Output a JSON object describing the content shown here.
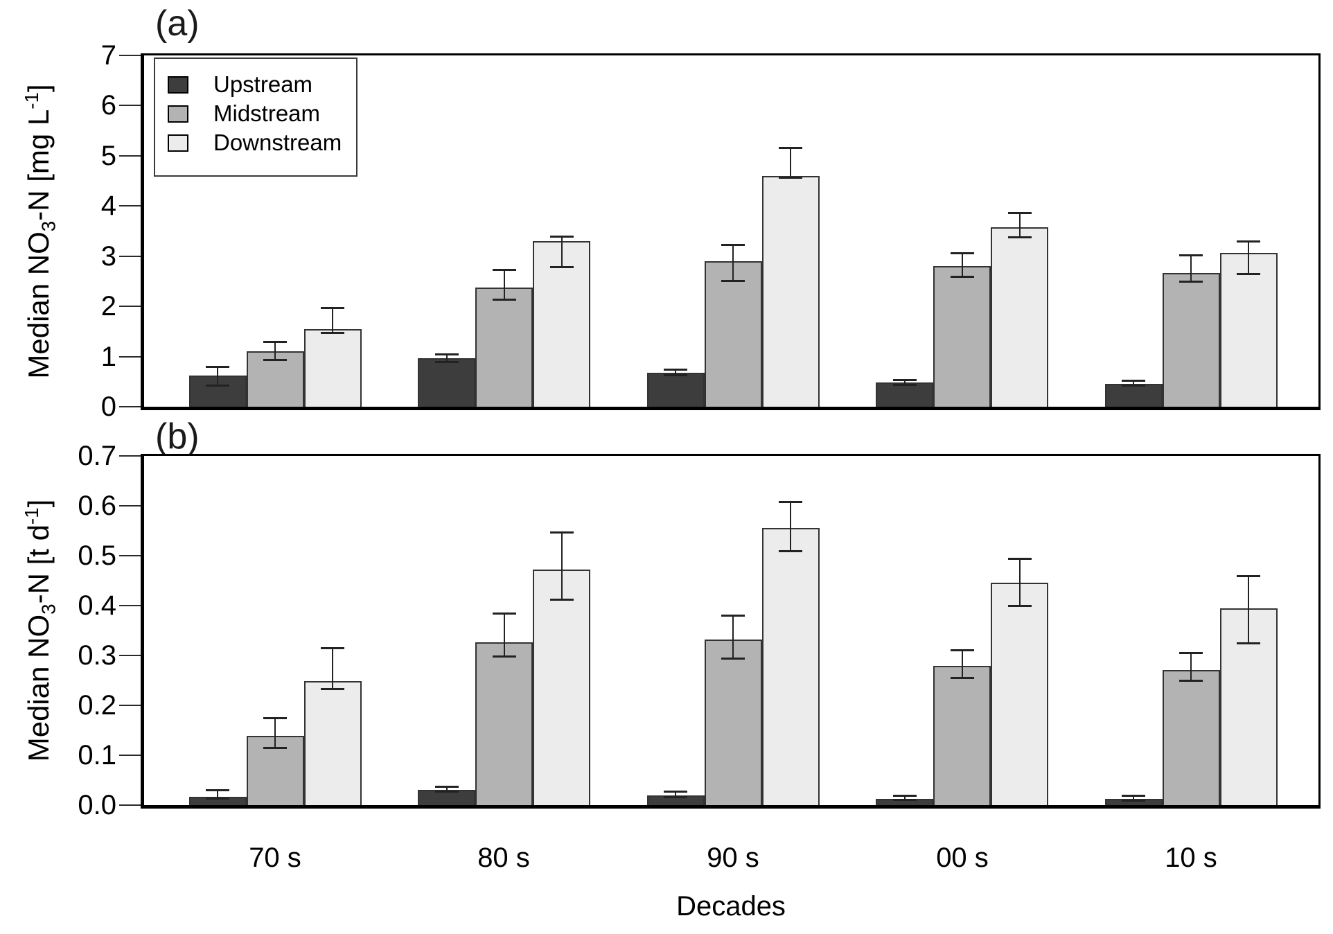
{
  "figure": {
    "background": "#ffffff",
    "x_axis_title": "Decades",
    "x_categories": [
      "70 s",
      "80 s",
      "90 s",
      "00 s",
      "10 s"
    ]
  },
  "legend": {
    "position": "top-left-inside-panel-a",
    "items": [
      {
        "label": "Upstream",
        "color": "#3d3d3d"
      },
      {
        "label": "Midstream",
        "color": "#b3b3b3"
      },
      {
        "label": "Downstream",
        "color": "#ececec"
      }
    ]
  },
  "chart_data": [
    {
      "type": "bar",
      "panel_label": "(a)",
      "ylabel_text": "Median NO3-N [mg L-1]",
      "ylabel_parts": {
        "pre": "Median NO",
        "sub": "3",
        "mid": "-N [mg L",
        "sup": "-1",
        "post": "]"
      },
      "ylim": [
        0,
        7
      ],
      "yticks": [
        0,
        1,
        2,
        3,
        4,
        5,
        6,
        7
      ],
      "ytick_labels": [
        "0",
        "1",
        "2",
        "3",
        "4",
        "5",
        "6",
        "7"
      ],
      "grid": false,
      "categories": [
        "70 s",
        "80 s",
        "90 s",
        "00 s",
        "10 s"
      ],
      "error_bars": "asymmetric caps (upper/lower whisker values)",
      "series": [
        {
          "name": "Upstream",
          "color": "#3d3d3d",
          "values": [
            0.62,
            0.97,
            0.68,
            0.48,
            0.46
          ],
          "err_hi": [
            0.8,
            1.05,
            0.74,
            0.54,
            0.53
          ],
          "err_lo": [
            0.41,
            0.88,
            0.62,
            0.43,
            0.42
          ]
        },
        {
          "name": "Midstream",
          "color": "#b3b3b3",
          "values": [
            1.1,
            2.37,
            2.9,
            2.8,
            2.67
          ],
          "err_hi": [
            1.3,
            2.73,
            3.23,
            3.07,
            3.02
          ],
          "err_lo": [
            0.93,
            2.13,
            2.5,
            2.58,
            2.49
          ]
        },
        {
          "name": "Downstream",
          "color": "#ececec",
          "values": [
            1.54,
            3.3,
            4.6,
            3.58,
            3.07
          ],
          "err_hi": [
            1.97,
            3.39,
            5.16,
            3.87,
            3.3
          ],
          "err_lo": [
            1.47,
            2.78,
            4.55,
            3.37,
            2.64
          ]
        }
      ]
    },
    {
      "type": "bar",
      "panel_label": "(b)",
      "ylabel_text": "Median NO3-N [t d-1]",
      "ylabel_parts": {
        "pre": "Median NO",
        "sub": "3",
        "mid": "-N [t d",
        "sup": "-1",
        "post": "]"
      },
      "ylim": [
        0,
        0.7
      ],
      "yticks": [
        0,
        0.1,
        0.2,
        0.3,
        0.4,
        0.5,
        0.6,
        0.7
      ],
      "ytick_labels": [
        "0.0",
        "0.1",
        "0.2",
        "0.3",
        "0.4",
        "0.5",
        "0.6",
        "0.7"
      ],
      "grid": false,
      "categories": [
        "70 s",
        "80 s",
        "90 s",
        "00 s",
        "10 s"
      ],
      "error_bars": "asymmetric caps (upper/lower whisker values)",
      "series": [
        {
          "name": "Upstream",
          "color": "#3d3d3d",
          "values": [
            0.017,
            0.031,
            0.02,
            0.013,
            0.013
          ],
          "err_hi": [
            0.031,
            0.037,
            0.028,
            0.019,
            0.02
          ],
          "err_lo": [
            0.012,
            0.026,
            0.015,
            0.01,
            0.009
          ]
        },
        {
          "name": "Midstream",
          "color": "#b3b3b3",
          "values": [
            0.139,
            0.326,
            0.332,
            0.279,
            0.271
          ],
          "err_hi": [
            0.175,
            0.385,
            0.38,
            0.311,
            0.306
          ],
          "err_lo": [
            0.114,
            0.297,
            0.293,
            0.254,
            0.249
          ]
        },
        {
          "name": "Downstream",
          "color": "#ececec",
          "values": [
            0.249,
            0.472,
            0.556,
            0.446,
            0.394
          ],
          "err_hi": [
            0.315,
            0.547,
            0.608,
            0.494,
            0.46
          ],
          "err_lo": [
            0.232,
            0.411,
            0.508,
            0.399,
            0.324
          ]
        }
      ]
    }
  ]
}
